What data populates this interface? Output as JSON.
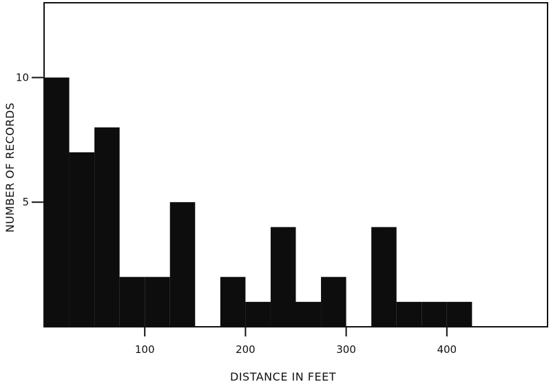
{
  "chart_data": {
    "type": "bar",
    "title": "",
    "xlabel": "DISTANCE IN FEET",
    "ylabel": "NUMBER OF RECORDS",
    "bin_width": 25,
    "bins": [
      {
        "x0": 0,
        "x1": 25,
        "count": 10
      },
      {
        "x0": 25,
        "x1": 50,
        "count": 7
      },
      {
        "x0": 50,
        "x1": 75,
        "count": 8
      },
      {
        "x0": 75,
        "x1": 100,
        "count": 2
      },
      {
        "x0": 100,
        "x1": 125,
        "count": 2
      },
      {
        "x0": 125,
        "x1": 150,
        "count": 5
      },
      {
        "x0": 150,
        "x1": 175,
        "count": 0
      },
      {
        "x0": 175,
        "x1": 200,
        "count": 2
      },
      {
        "x0": 200,
        "x1": 225,
        "count": 1
      },
      {
        "x0": 225,
        "x1": 250,
        "count": 4
      },
      {
        "x0": 250,
        "x1": 275,
        "count": 1
      },
      {
        "x0": 275,
        "x1": 300,
        "count": 2
      },
      {
        "x0": 300,
        "x1": 325,
        "count": 0
      },
      {
        "x0": 325,
        "x1": 350,
        "count": 4
      },
      {
        "x0": 350,
        "x1": 375,
        "count": 1
      },
      {
        "x0": 375,
        "x1": 400,
        "count": 1
      },
      {
        "x0": 400,
        "x1": 425,
        "count": 1
      }
    ],
    "xlim": [
      0,
      500
    ],
    "ylim": [
      0,
      13
    ],
    "xticks": [
      {
        "value": 100,
        "label": "100"
      },
      {
        "value": 200,
        "label": "200"
      },
      {
        "value": 300,
        "label": "300"
      },
      {
        "value": 400,
        "label": "400"
      }
    ],
    "yticks": [
      {
        "value": 5,
        "label": "5"
      },
      {
        "value": 10,
        "label": "10"
      }
    ],
    "grid": false,
    "bar_color": "#0d0d0d"
  }
}
